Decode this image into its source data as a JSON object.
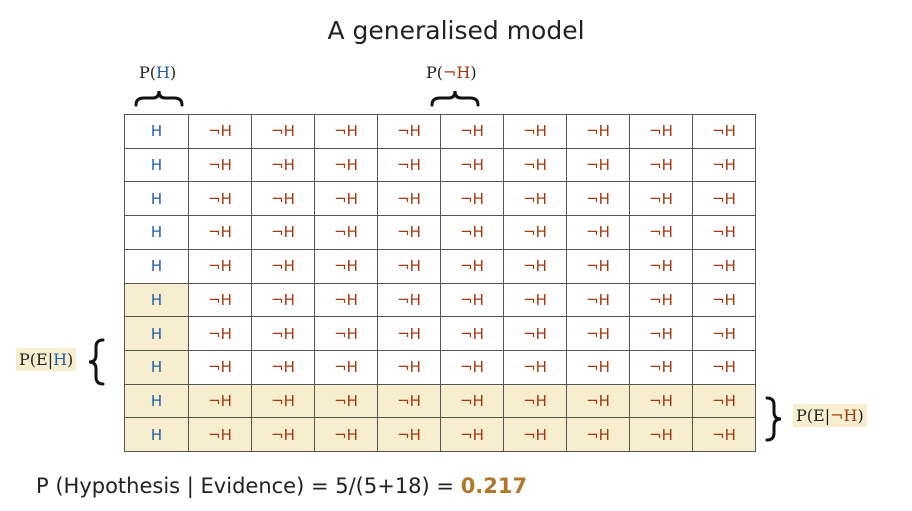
{
  "title": "A generalised model",
  "labels": {
    "p_h": {
      "prefix": "P(",
      "symbol": "H",
      "suffix": ")"
    },
    "p_not_h": {
      "prefix": "P(",
      "symbol": "¬H",
      "suffix": ")"
    },
    "p_e_given_h": {
      "prefix": "P(E|",
      "symbol": "H",
      "suffix": ")"
    },
    "p_e_given_not_h": {
      "prefix": "P(E|",
      "symbol": "¬H",
      "suffix": ")"
    }
  },
  "grid": {
    "rows": 10,
    "columns": 10,
    "h_symbol": "H",
    "not_h_symbol": "¬H",
    "h_column_count": 1,
    "evidence_h_rows": [
      6,
      7,
      8,
      9,
      10
    ],
    "evidence_not_h_rows": [
      9,
      10
    ]
  },
  "formula": {
    "expression": "P (Hypothesis | Evidence) = 5/(5+18) = ",
    "result": "0.217"
  },
  "colors": {
    "h": "#1f5fa6",
    "not_h": "#a33a12",
    "shade": "#f7edcf",
    "result": "#b0782a"
  }
}
